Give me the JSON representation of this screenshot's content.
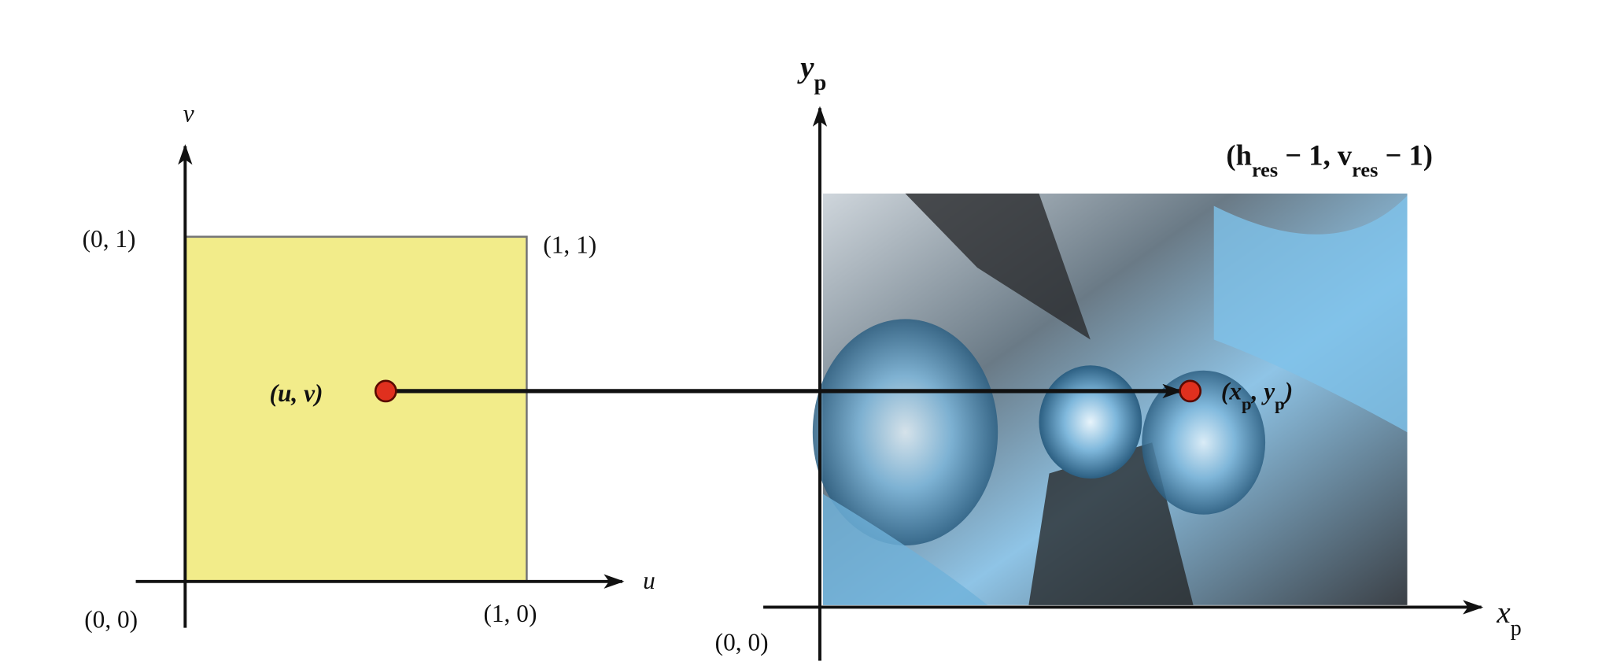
{
  "left_panel": {
    "axis_x_label": "u",
    "axis_y_label": "v",
    "corner_top_left": "(0, 1)",
    "corner_top_right": "(1, 1)",
    "corner_origin": "(0, 0)",
    "corner_bottom_right": "(1, 0)",
    "point_label": "(u, v)"
  },
  "right_panel": {
    "axis_y_label": [
      {
        "text": "y"
      },
      {
        "text": "p",
        "sub": true
      }
    ],
    "axis_x_label": [
      {
        "text": "x"
      },
      {
        "text": "p",
        "sub": true
      }
    ],
    "corner_origin": "(0, 0)",
    "corner_top_right": [
      {
        "text": "(h"
      },
      {
        "text": "res",
        "sub": true
      },
      {
        "text": " − 1, v"
      },
      {
        "text": "res",
        "sub": true
      },
      {
        "text": " − 1)"
      }
    ],
    "point_label": [
      {
        "text": "(x"
      },
      {
        "text": "p",
        "sub": true
      },
      {
        "text": ", y"
      },
      {
        "text": "p",
        "sub": true
      },
      {
        "text": ")"
      }
    ]
  }
}
